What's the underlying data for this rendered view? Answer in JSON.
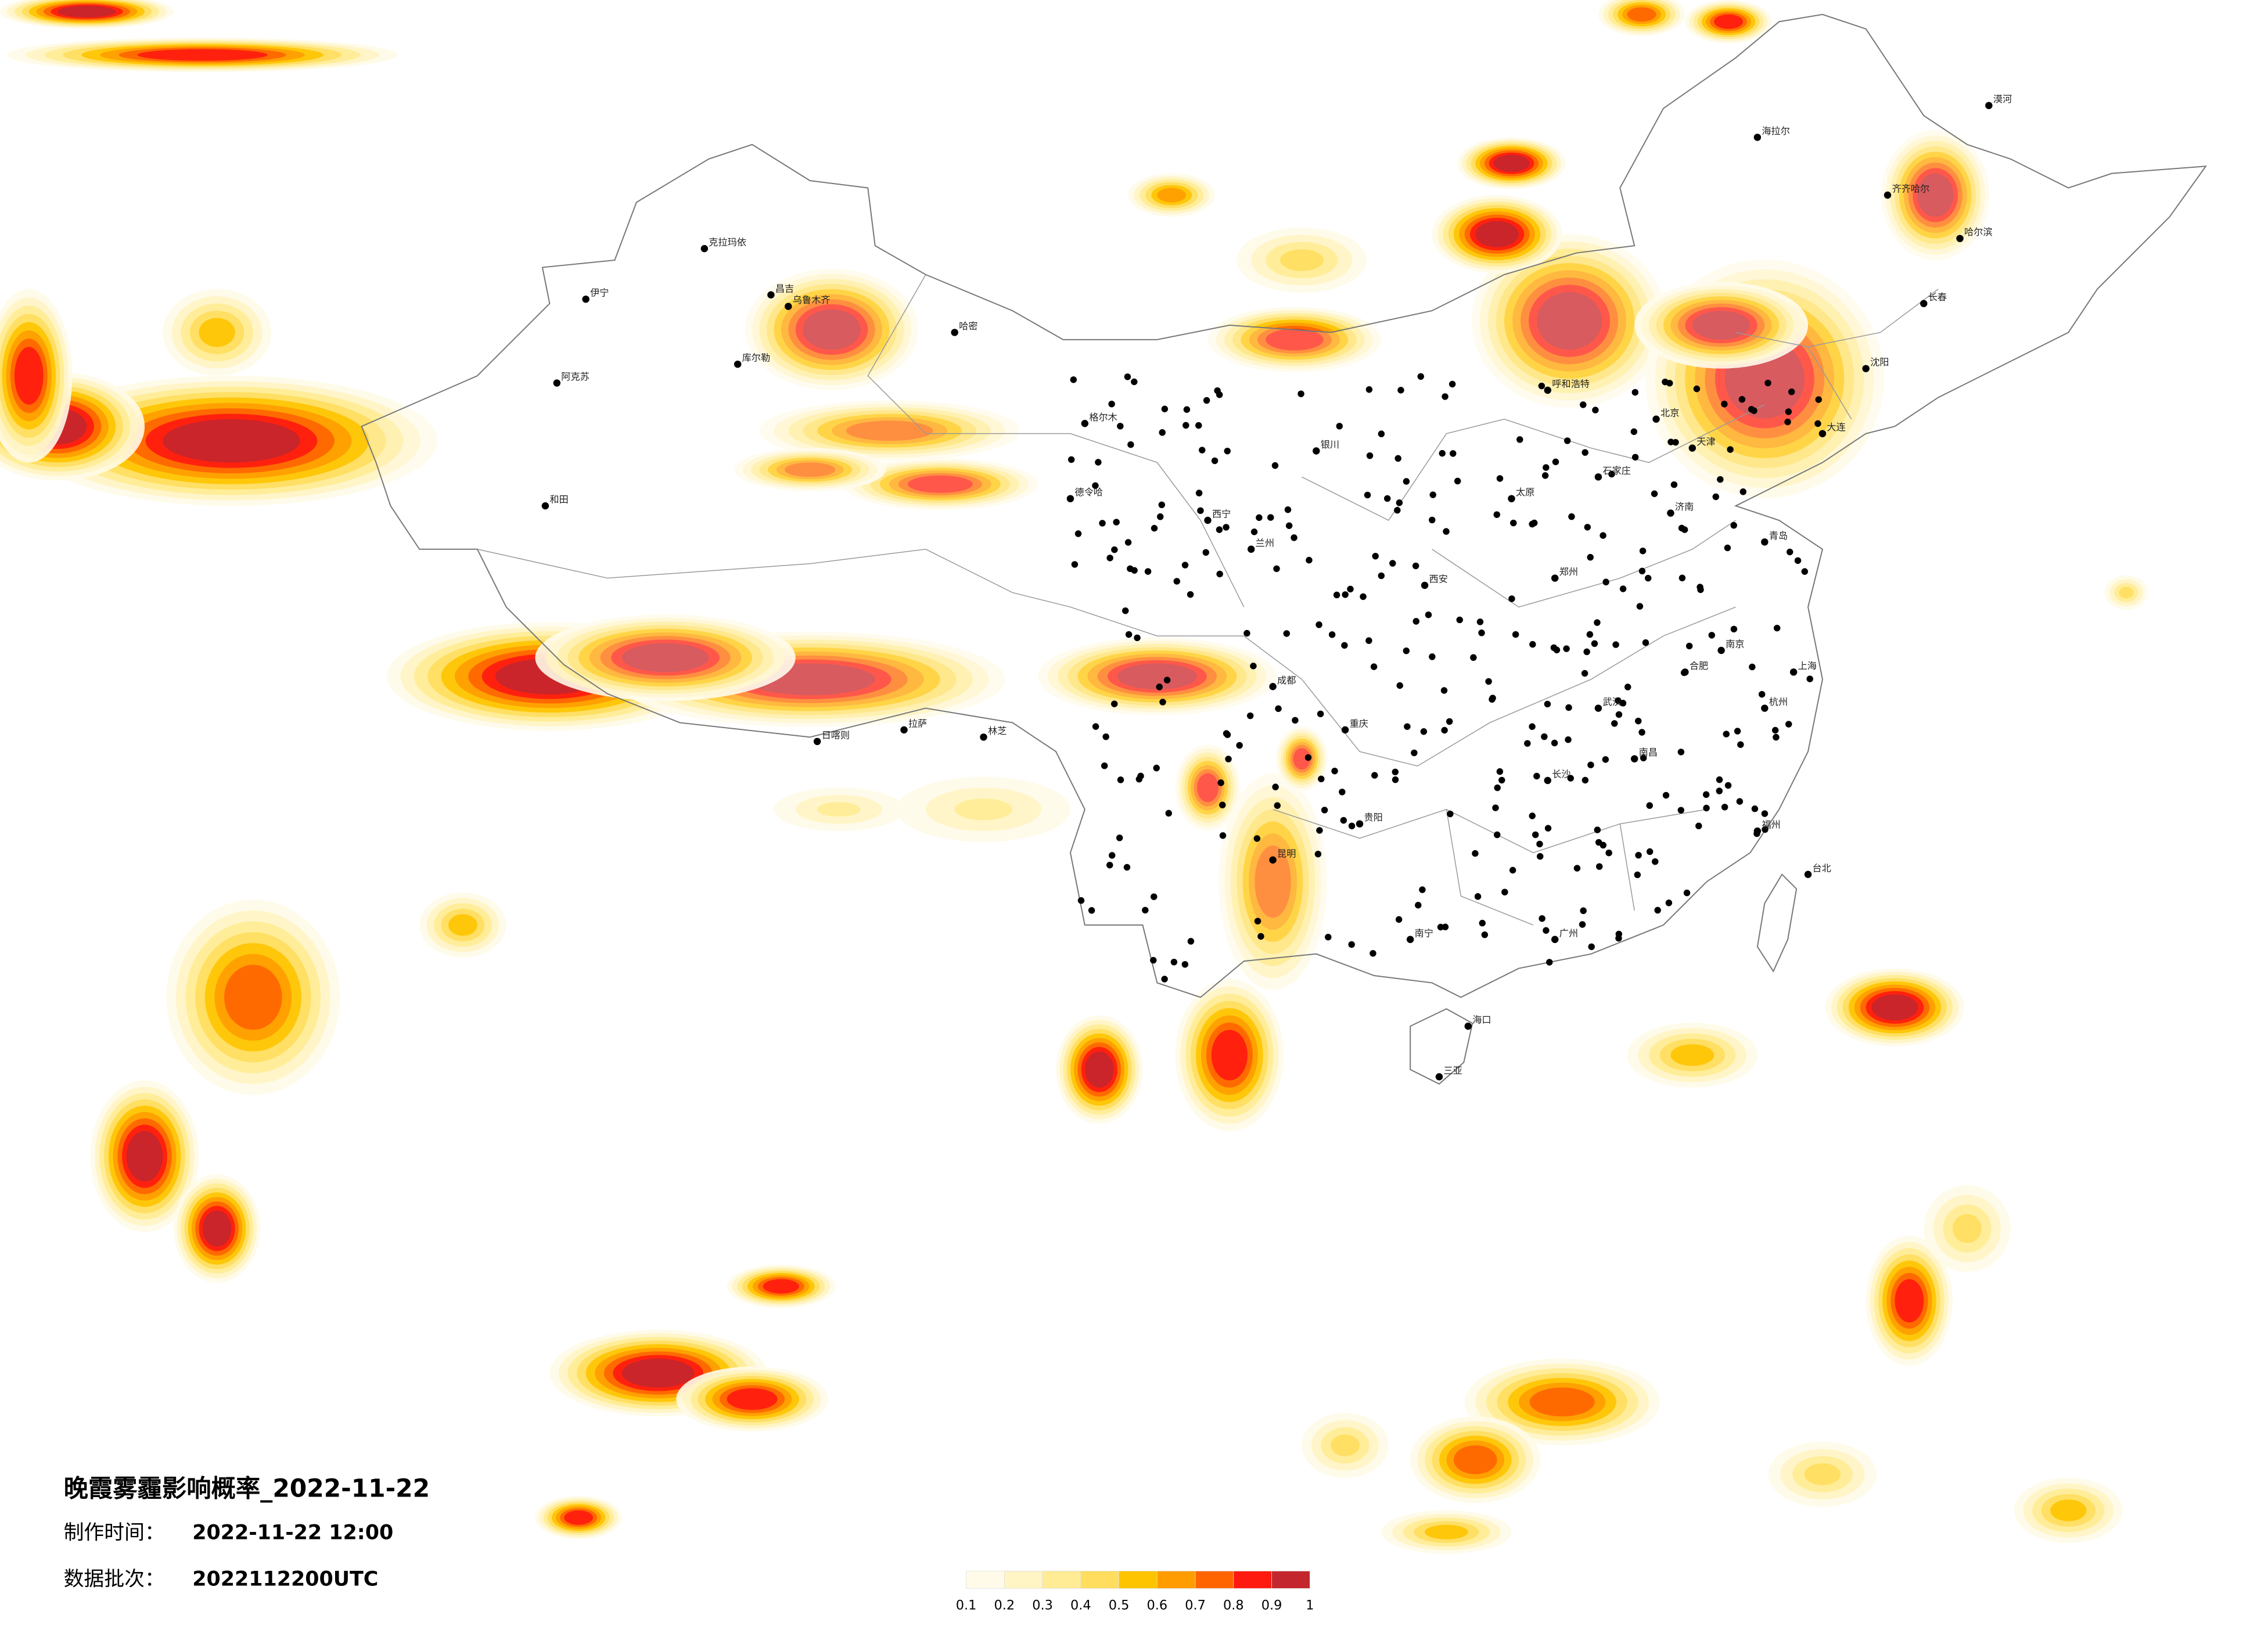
{
  "header": {
    "title": "晚霞雾霾影响概率_2022-11-22",
    "production_time_label": "制作时间：",
    "production_time": "2022-11-22 12:00",
    "batch_label": "数据批次：",
    "batch": "2022112200UTC"
  },
  "legend": {
    "colors": [
      "#fffbe8",
      "#fff4c4",
      "#ffec94",
      "#ffdd5e",
      "#ffc400",
      "#ff9c00",
      "#ff6400",
      "#ff1a10",
      "#c4262e"
    ],
    "ticks": [
      "0.1",
      "0.2",
      "0.3",
      "0.4",
      "0.5",
      "0.6",
      "0.7",
      "0.8",
      "0.9",
      "1"
    ]
  },
  "cities": [
    "克拉玛依",
    "伊宁",
    "昌吉",
    "乌鲁木齐",
    "哈密",
    "阿克苏",
    "库尔勒",
    "和田",
    "格尔木",
    "德令哈",
    "拉萨",
    "日喀则",
    "林芝",
    "西宁",
    "兰州",
    "银川",
    "呼和浩特",
    "北京",
    "天津",
    "石家庄",
    "太原",
    "济南",
    "青岛",
    "郑州",
    "西安",
    "成都",
    "重庆",
    "武汉",
    "长沙",
    "南昌",
    "合肥",
    "南京",
    "上海",
    "杭州",
    "福州",
    "台北",
    "广州",
    "南宁",
    "海口",
    "三亚",
    "昆明",
    "贵阳",
    "哈尔滨",
    "长春",
    "沈阳",
    "大连",
    "齐齐哈尔",
    "海拉尔",
    "漠河"
  ]
}
